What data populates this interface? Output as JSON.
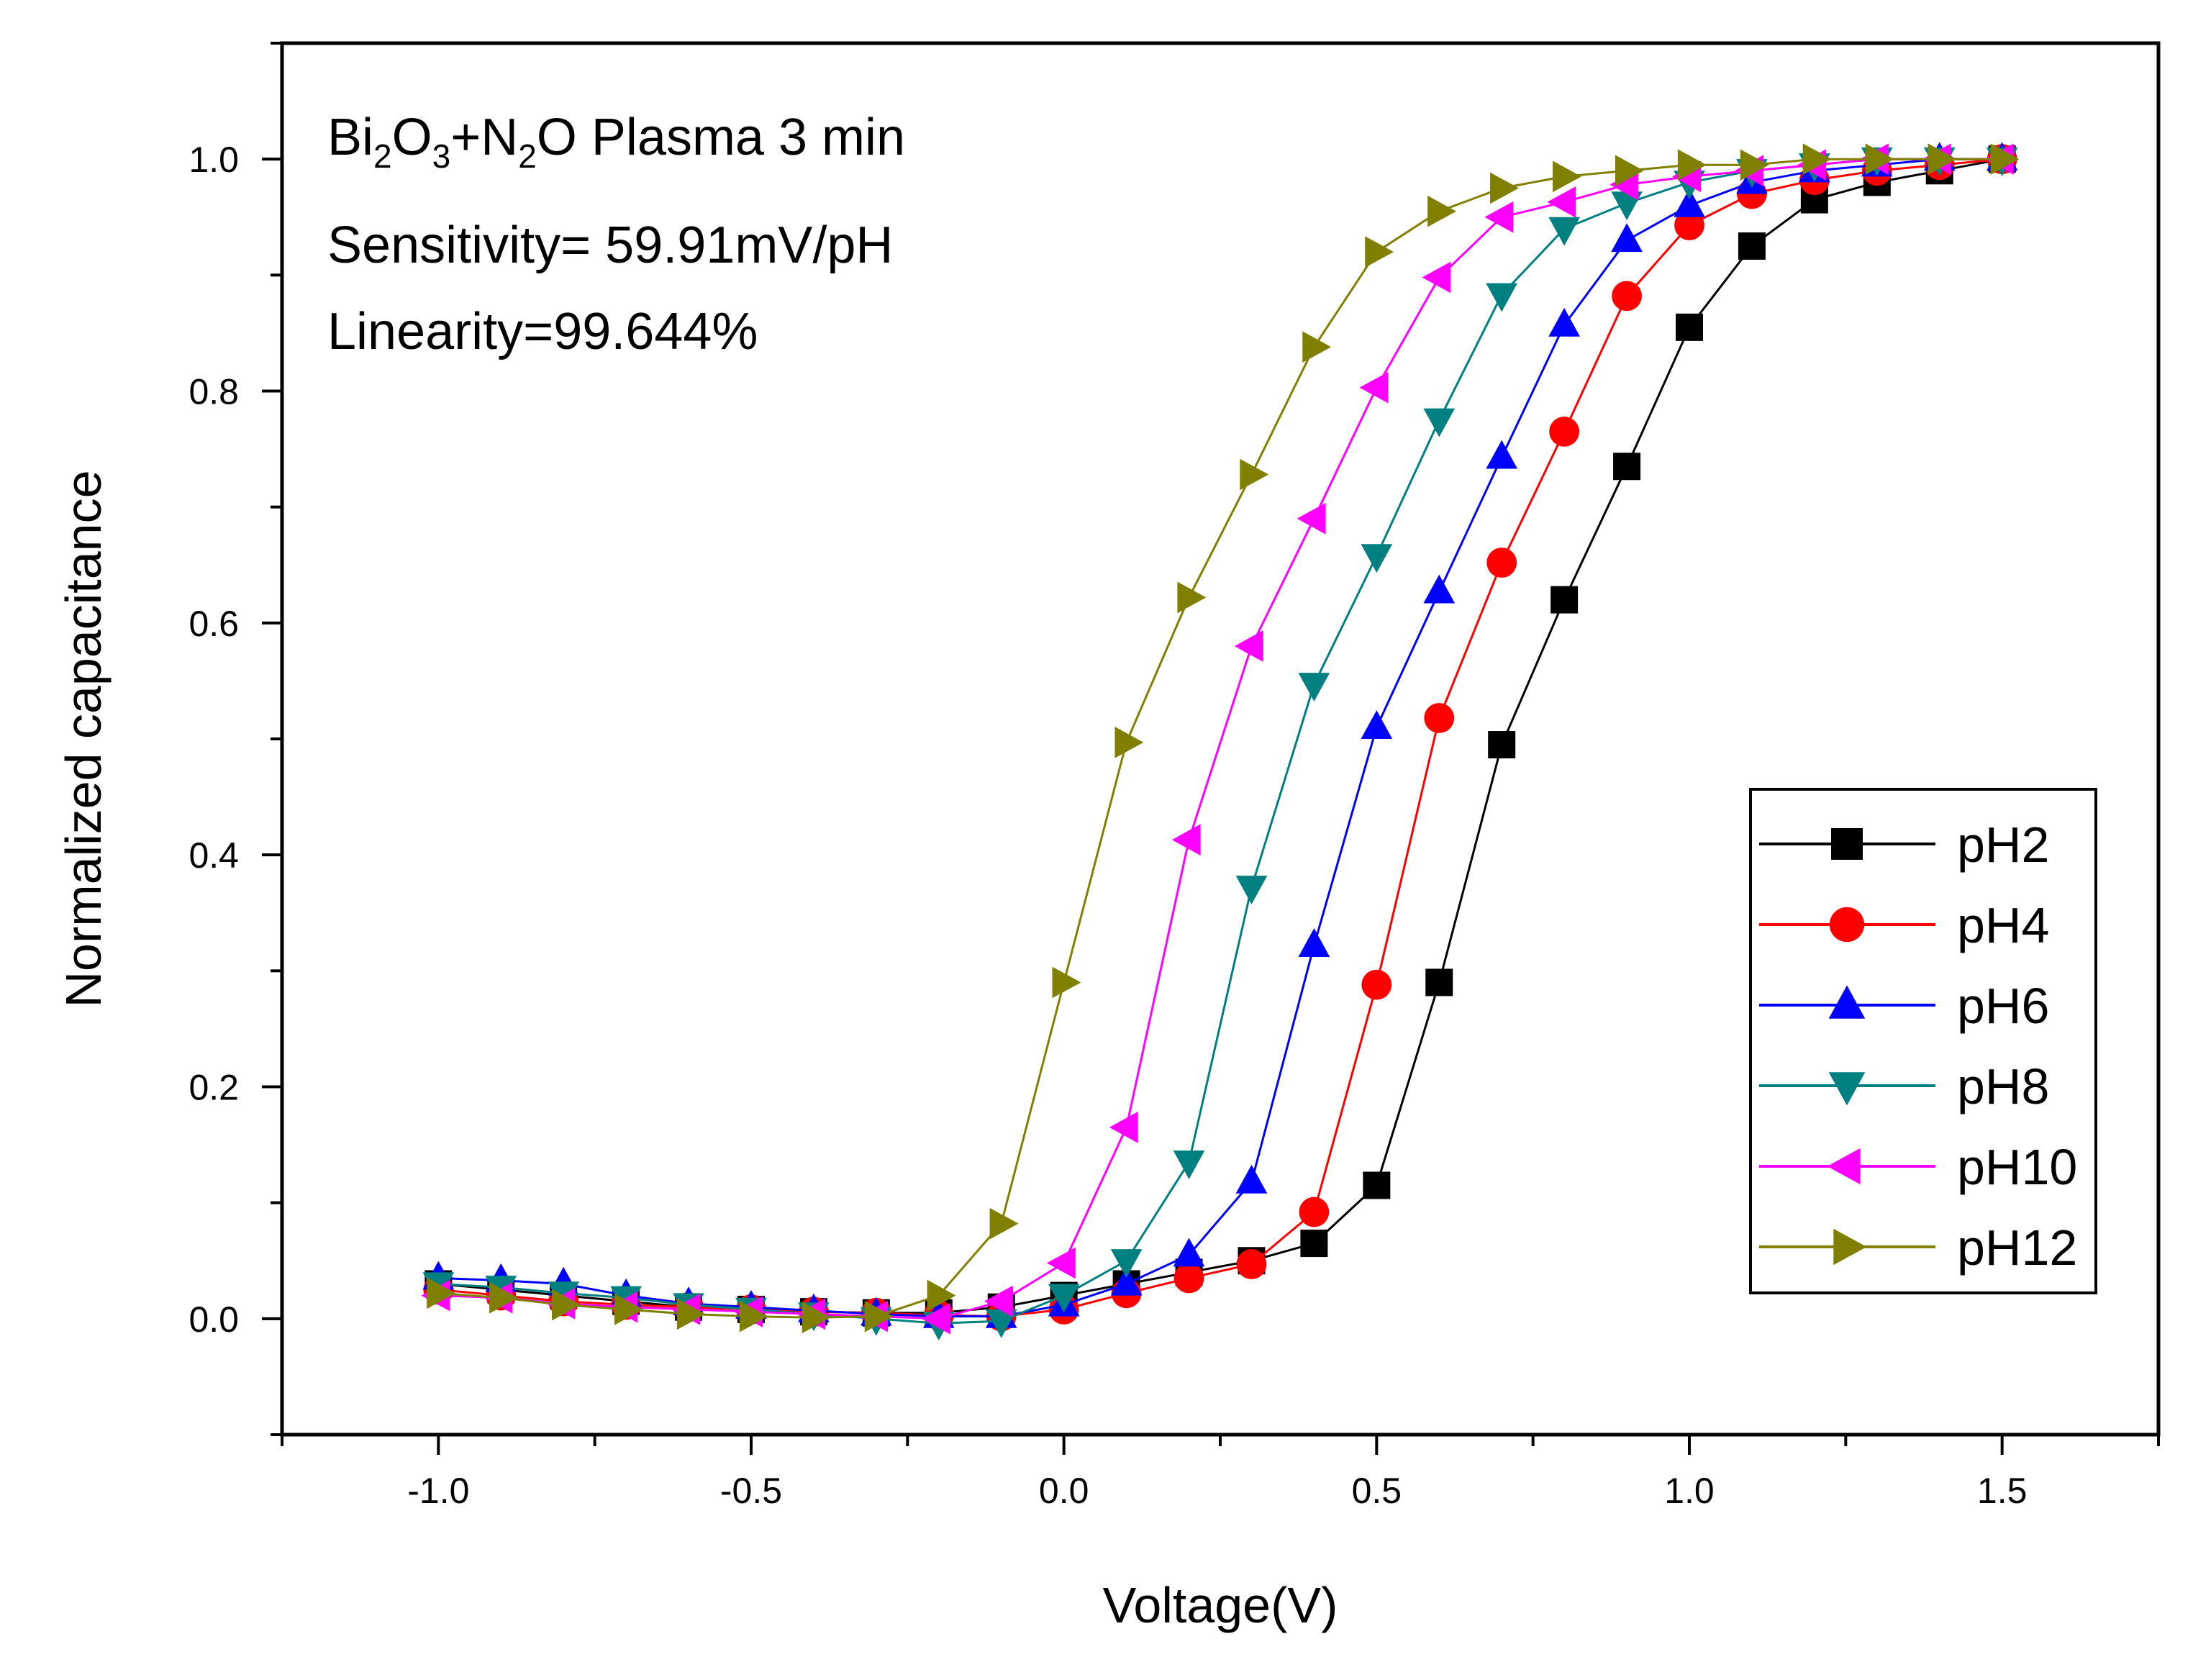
{
  "chart_data": {
    "type": "line",
    "xlabel": "Voltage(V)",
    "ylabel": "Normalized capacitance",
    "xlim": [
      -1.25,
      1.75
    ],
    "ylim": [
      -0.1,
      1.1
    ],
    "xticks": [
      "-1.0",
      "-0.5",
      "0.0",
      "0.5",
      "1.0",
      "1.5"
    ],
    "xtick_values": [
      -1.0,
      -0.5,
      0.0,
      0.5,
      1.0,
      1.5
    ],
    "yticks": [
      "0.0",
      "0.2",
      "0.4",
      "0.6",
      "0.8",
      "1.0"
    ],
    "ytick_values": [
      0.0,
      0.2,
      0.4,
      0.6,
      0.8,
      1.0
    ],
    "annotations": {
      "title_parts": [
        "Bi",
        "2",
        "O",
        "3",
        "+N",
        "2",
        "O Plasma 3 min"
      ],
      "sensitivity": "Sensitivity= 59.91mV/pH",
      "linearity": "Linearity=99.644%"
    },
    "legend_position": "bottom-right",
    "x": [
      -1.0,
      -0.9,
      -0.8,
      -0.7,
      -0.6,
      -0.5,
      -0.4,
      -0.3,
      -0.2,
      -0.1,
      0.0,
      0.1,
      0.2,
      0.3,
      0.4,
      0.5,
      0.6,
      0.7,
      0.8,
      0.9,
      1.0,
      1.1,
      1.2,
      1.3,
      1.4,
      1.5
    ],
    "series": [
      {
        "name": "pH2",
        "color": "#000000",
        "marker": "square",
        "values": [
          0.03,
          0.025,
          0.02,
          0.015,
          0.01,
          0.008,
          0.006,
          0.005,
          0.005,
          0.01,
          0.02,
          0.03,
          0.04,
          0.05,
          0.065,
          0.115,
          0.29,
          0.495,
          0.62,
          0.735,
          0.855,
          0.925,
          0.965,
          0.98,
          0.99,
          1.0
        ]
      },
      {
        "name": "pH4",
        "color": "#ff0000",
        "marker": "circle",
        "values": [
          0.025,
          0.02,
          0.015,
          0.012,
          0.01,
          0.008,
          0.006,
          0.005,
          0.003,
          0.002,
          0.008,
          0.022,
          0.035,
          0.047,
          0.092,
          0.288,
          0.518,
          0.652,
          0.765,
          0.882,
          0.943,
          0.97,
          0.982,
          0.99,
          0.995,
          1.0
        ]
      },
      {
        "name": "pH6",
        "color": "#0000ff",
        "marker": "triangle-up",
        "values": [
          0.035,
          0.033,
          0.03,
          0.02,
          0.013,
          0.01,
          0.007,
          0.004,
          0.002,
          0.002,
          0.012,
          0.03,
          0.055,
          0.118,
          0.322,
          0.51,
          0.627,
          0.743,
          0.857,
          0.93,
          0.96,
          0.98,
          0.99,
          0.995,
          1.0,
          1.0
        ]
      },
      {
        "name": "pH8",
        "color": "#008080",
        "marker": "triangle-down",
        "values": [
          0.03,
          0.027,
          0.022,
          0.018,
          0.012,
          0.008,
          0.004,
          0.0,
          -0.004,
          -0.002,
          0.02,
          0.05,
          0.135,
          0.372,
          0.547,
          0.658,
          0.775,
          0.883,
          0.94,
          0.962,
          0.98,
          0.99,
          0.995,
          1.0,
          1.0,
          1.0
        ]
      },
      {
        "name": "pH10",
        "color": "#ff00ff",
        "marker": "triangle-left",
        "values": [
          0.02,
          0.018,
          0.013,
          0.01,
          0.008,
          0.006,
          0.004,
          0.002,
          0.0,
          0.015,
          0.048,
          0.165,
          0.413,
          0.58,
          0.69,
          0.803,
          0.898,
          0.95,
          0.963,
          0.978,
          0.985,
          0.99,
          0.995,
          1.0,
          1.0,
          1.0
        ]
      },
      {
        "name": "pH12",
        "color": "#808000",
        "marker": "triangle-right",
        "values": [
          0.022,
          0.018,
          0.012,
          0.008,
          0.004,
          0.002,
          0.001,
          0.002,
          0.02,
          0.082,
          0.29,
          0.497,
          0.622,
          0.728,
          0.838,
          0.92,
          0.955,
          0.975,
          0.985,
          0.99,
          0.995,
          0.995,
          1.0,
          1.0,
          1.0,
          1.0
        ]
      }
    ]
  }
}
